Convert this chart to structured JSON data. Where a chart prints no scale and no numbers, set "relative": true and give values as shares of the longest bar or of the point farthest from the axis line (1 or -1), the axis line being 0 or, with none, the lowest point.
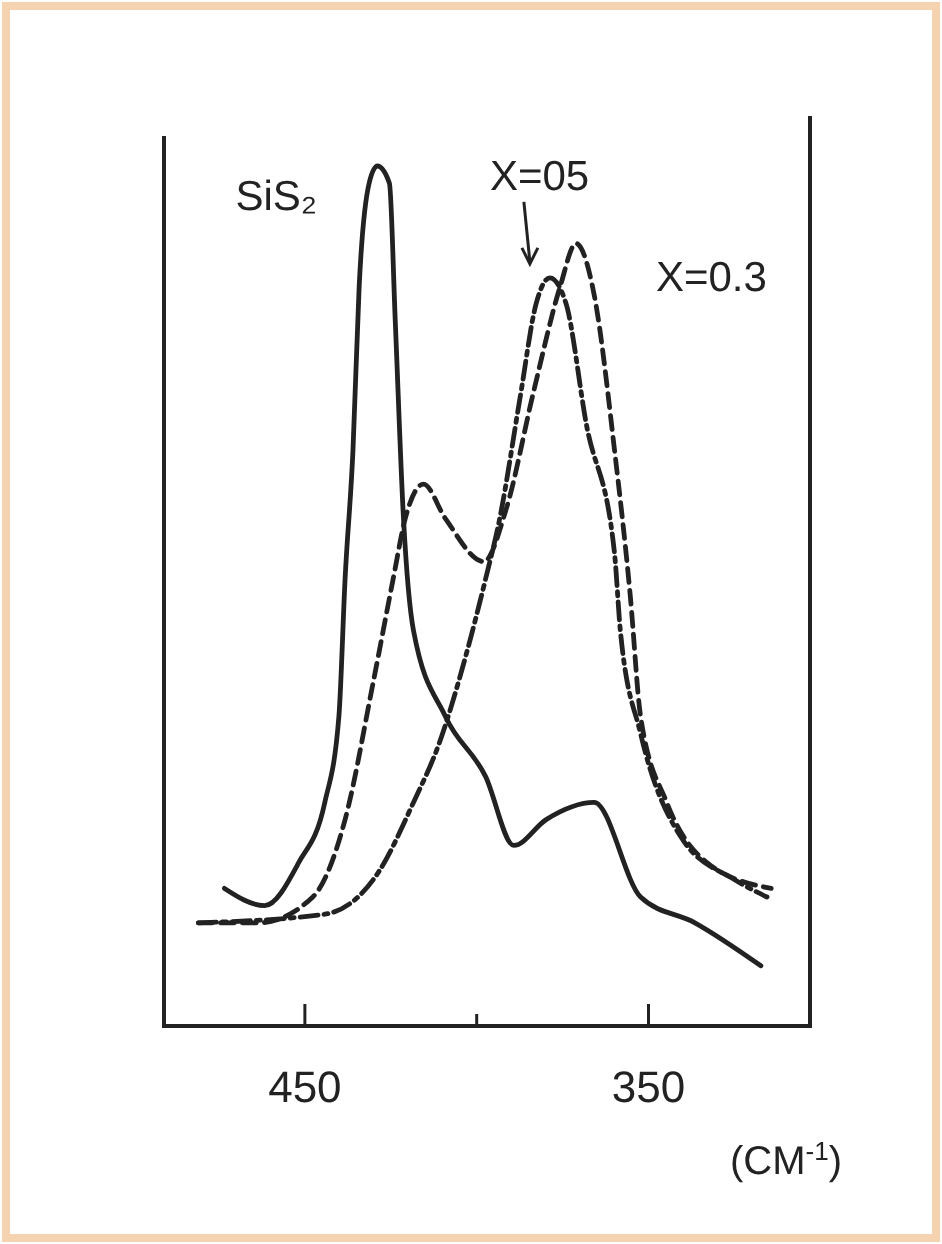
{
  "chart_data": {
    "type": "line",
    "relative": true,
    "xlabel": "(CM$^{-1}$)",
    "xlim": [
      491,
      303
    ],
    "xticks": [
      450,
      {
        "value": 400,
        "label": null
      },
      350
    ],
    "grid": false,
    "marker": "none",
    "series": [
      {
        "name": "SiS₂",
        "color": "#222222",
        "line_style": "solid",
        "x": [
          473.4,
          461.7,
          451.8,
          444.2,
          440.1,
          438.3,
          436.0,
          434.2,
          431.3,
          428.9,
          425.4,
          423.7,
          421.3,
          418.4,
          409.1,
          397.4,
          389.2,
          379.8,
          365.8,
          352.3,
          336.5,
          317.3
        ],
        "values": [
          0.16,
          0.14,
          0.19,
          0.26,
          0.36,
          0.52,
          0.67,
          0.86,
          0.98,
          1.0,
          0.98,
          0.82,
          0.59,
          0.46,
          0.36,
          0.29,
          0.21,
          0.24,
          0.26,
          0.15,
          0.12,
          0.07
        ]
      },
      {
        "name": "X=05",
        "color": "#222222",
        "line_style": "dashdot",
        "x": [
          481.0,
          444.2,
          428.4,
          418.4,
          410.8,
          403.2,
          397.4,
          393.3,
          387.4,
          382.7,
          378.7,
          374.0,
          368.1,
          359.9,
          358.2,
          352.3,
          340.6,
          324.9,
          315.5
        ],
        "values": [
          0.12,
          0.13,
          0.18,
          0.26,
          0.33,
          0.43,
          0.52,
          0.59,
          0.73,
          0.84,
          0.87,
          0.84,
          0.7,
          0.55,
          0.46,
          0.34,
          0.22,
          0.17,
          0.15
        ]
      },
      {
        "name": "X=0.3",
        "color": "#222222",
        "line_style": "dashed",
        "x": [
          481.0,
          463.5,
          447.7,
          438.3,
          430.1,
          424.3,
          420.8,
          415.5,
          409.1,
          397.9,
          391.5,
          383.3,
          375.7,
          371.1,
          365.8,
          359.9,
          355.3,
          352.3,
          344.7,
          333.0,
          314.3
        ],
        "values": [
          0.12,
          0.12,
          0.15,
          0.24,
          0.4,
          0.52,
          0.59,
          0.63,
          0.59,
          0.54,
          0.6,
          0.74,
          0.86,
          0.91,
          0.85,
          0.67,
          0.5,
          0.36,
          0.26,
          0.19,
          0.16
        ]
      }
    ]
  }
}
